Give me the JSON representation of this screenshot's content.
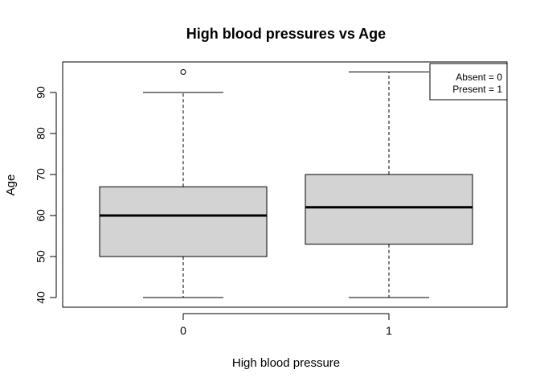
{
  "chart_data": {
    "type": "boxplot",
    "title": "High blood pressures vs Age",
    "xlabel": "High blood pressure",
    "ylabel": "Age",
    "categories": [
      "0",
      "1"
    ],
    "yticks": [
      "40",
      "50",
      "60",
      "70",
      "80",
      "90"
    ],
    "ylim": [
      38,
      97
    ],
    "boxes": [
      {
        "category": "0",
        "whisker_low": 40,
        "q1": 50,
        "median": 60,
        "q3": 67,
        "whisker_high": 90,
        "outliers": [
          95
        ]
      },
      {
        "category": "1",
        "whisker_low": 40,
        "q1": 53,
        "median": 62,
        "q3": 70,
        "whisker_high": 95,
        "outliers": []
      }
    ],
    "legend": {
      "position": "top-right",
      "entries": [
        "Absent = 0",
        "Present = 1"
      ]
    },
    "colors": {
      "box_fill": "#d3d3d3",
      "stroke": "#000000"
    },
    "grid": false
  }
}
